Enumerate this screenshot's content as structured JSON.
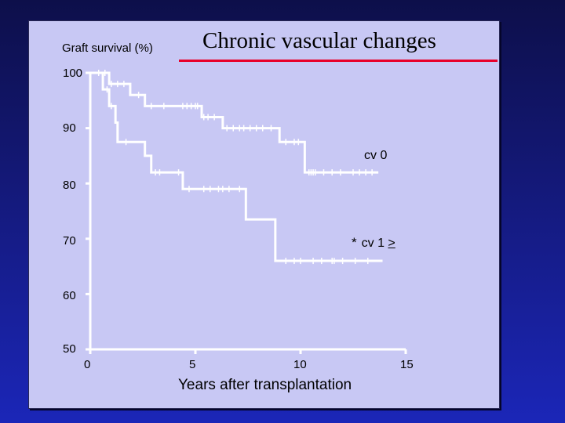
{
  "chart_data": {
    "type": "line",
    "title": "Chronic vascular changes",
    "ylabel": "Graft survival (%)",
    "xlabel": "Years after transplantation",
    "xlim": [
      0,
      15
    ],
    "ylim": [
      50,
      100
    ],
    "xticks": [
      0,
      5,
      10,
      15
    ],
    "yticks": [
      100,
      90,
      80,
      70,
      60,
      50
    ],
    "colors": {
      "title_rule": "#e8002a",
      "axis": "#ffffff",
      "panel": "#c8c8f4"
    },
    "series": [
      {
        "name": "cv 0",
        "steps": [
          [
            0,
            100
          ],
          [
            0.9,
            100
          ],
          [
            0.9,
            98
          ],
          [
            1.9,
            98
          ],
          [
            1.9,
            96
          ],
          [
            2.6,
            96
          ],
          [
            2.6,
            94
          ],
          [
            5.3,
            94
          ],
          [
            5.3,
            92
          ],
          [
            6.3,
            92
          ],
          [
            6.3,
            90
          ],
          [
            9.0,
            90
          ],
          [
            9.0,
            87.5
          ],
          [
            10.2,
            87.5
          ],
          [
            10.2,
            82
          ],
          [
            13.7,
            82
          ]
        ],
        "censored": [
          0.4,
          0.7,
          1.0,
          1.3,
          1.6,
          2.3,
          2.9,
          3.5,
          4.4,
          4.6,
          4.8,
          5.0,
          5.1,
          5.4,
          5.6,
          5.9,
          6.5,
          6.8,
          7.1,
          7.3,
          7.6,
          7.9,
          8.2,
          8.6,
          9.3,
          9.7,
          9.9,
          10.4,
          10.5,
          10.6,
          10.7,
          11.1,
          11.5,
          11.9,
          12.5,
          12.8,
          13.1,
          13.4
        ]
      },
      {
        "name": "cv 1 >",
        "label_prefix": "*",
        "label_main": "cv 1 ",
        "label_symbol": ">",
        "steps": [
          [
            0,
            100
          ],
          [
            0.6,
            100
          ],
          [
            0.6,
            97
          ],
          [
            0.9,
            97
          ],
          [
            0.9,
            94
          ],
          [
            1.2,
            94
          ],
          [
            1.2,
            91
          ],
          [
            1.3,
            91
          ],
          [
            1.3,
            87.5
          ],
          [
            2.6,
            87.5
          ],
          [
            2.6,
            85
          ],
          [
            2.9,
            85
          ],
          [
            2.9,
            82
          ],
          [
            4.4,
            82
          ],
          [
            4.4,
            79
          ],
          [
            7.4,
            79
          ],
          [
            7.4,
            73.5
          ],
          [
            8.8,
            73.5
          ],
          [
            8.8,
            66
          ],
          [
            13.9,
            66
          ]
        ],
        "censored": [
          0.8,
          1.0,
          1.7,
          3.1,
          3.3,
          4.2,
          4.7,
          5.4,
          5.7,
          6.1,
          6.3,
          6.6,
          7.1,
          9.3,
          9.7,
          10.0,
          10.6,
          11.0,
          11.5,
          11.6,
          12.0,
          12.6,
          13.2
        ]
      }
    ]
  }
}
